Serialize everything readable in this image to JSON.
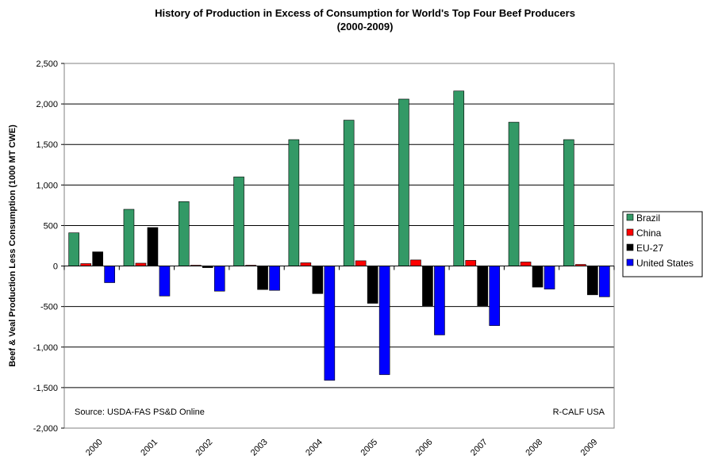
{
  "chart_data": {
    "type": "bar",
    "title": "History of Production in Excess of Consumption for World's Top Four Beef Producers",
    "subtitle": "(2000-2009)",
    "xlabel": "",
    "ylabel": "Beef & Veal Production Less Consumption (1000 MT CWE)",
    "ylim": [
      -2000,
      2500
    ],
    "ytick_step": 500,
    "grid": true,
    "legend_position": "right",
    "categories": [
      "2000",
      "2001",
      "2002",
      "2003",
      "2004",
      "2005",
      "2006",
      "2007",
      "2008",
      "2009"
    ],
    "series": [
      {
        "name": "Brazil",
        "color": "#339966",
        "values": [
          410,
          700,
          795,
          1100,
          1560,
          1800,
          2060,
          2160,
          1775,
          1560
        ]
      },
      {
        "name": "China",
        "color": "#ff0000",
        "values": [
          30,
          35,
          10,
          10,
          40,
          65,
          75,
          70,
          50,
          20
        ]
      },
      {
        "name": "EU-27",
        "color": "#000000",
        "values": [
          175,
          475,
          -20,
          -290,
          -340,
          -460,
          -490,
          -490,
          -260,
          -355
        ]
      },
      {
        "name": "United States",
        "color": "#0000ff",
        "values": [
          -205,
          -370,
          -310,
          -300,
          -1410,
          -1340,
          -850,
          -735,
          -285,
          -380
        ]
      }
    ],
    "annotations": {
      "source": "Source: USDA-FAS PS&D Online",
      "credit": "R-CALF USA"
    }
  }
}
